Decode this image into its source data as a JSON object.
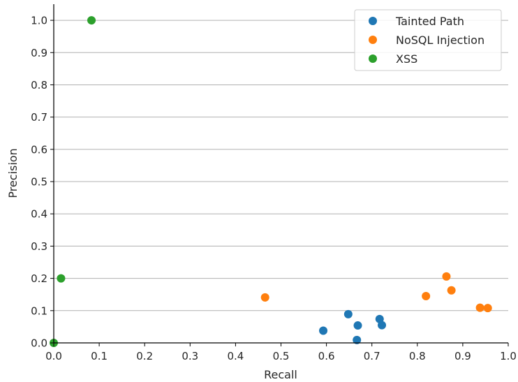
{
  "chart_data": {
    "type": "scatter",
    "xlabel": "Recall",
    "ylabel": "Precision",
    "xlim": [
      0.0,
      1.0
    ],
    "ylim": [
      0.0,
      1.05
    ],
    "xticks": [
      "0.0",
      "0.1",
      "0.2",
      "0.3",
      "0.4",
      "0.5",
      "0.6",
      "0.7",
      "0.8",
      "0.9",
      "1.0"
    ],
    "yticks": [
      "0.0",
      "0.1",
      "0.2",
      "0.3",
      "0.4",
      "0.5",
      "0.6",
      "0.7",
      "0.8",
      "0.9",
      "1.0"
    ],
    "grid": "horizontal",
    "legend_position": "top-right",
    "series": [
      {
        "name": "Tainted Path",
        "color": "#1f77b4",
        "points": [
          {
            "x": 0.593,
            "y": 0.038
          },
          {
            "x": 0.648,
            "y": 0.089
          },
          {
            "x": 0.667,
            "y": 0.009
          },
          {
            "x": 0.669,
            "y": 0.054
          },
          {
            "x": 0.717,
            "y": 0.074
          },
          {
            "x": 0.722,
            "y": 0.055
          }
        ]
      },
      {
        "name": "NoSQL Injection",
        "color": "#ff7f0e",
        "points": [
          {
            "x": 0.465,
            "y": 0.141
          },
          {
            "x": 0.819,
            "y": 0.145
          },
          {
            "x": 0.864,
            "y": 0.206
          },
          {
            "x": 0.875,
            "y": 0.163
          },
          {
            "x": 0.938,
            "y": 0.109
          },
          {
            "x": 0.955,
            "y": 0.108
          }
        ]
      },
      {
        "name": "XSS",
        "color": "#2ca02c",
        "points": [
          {
            "x": 0.0,
            "y": 0.0
          },
          {
            "x": 0.016,
            "y": 0.2
          },
          {
            "x": 0.083,
            "y": 1.0
          }
        ]
      }
    ]
  }
}
